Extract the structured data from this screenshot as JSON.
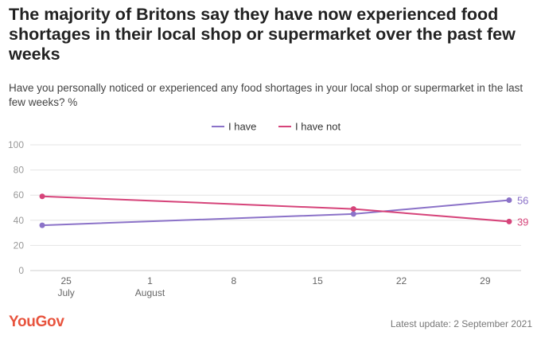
{
  "title": "The majority of Britons say they have now experienced food shortages in their local shop or supermarket over the past few weeks",
  "subtitle": "Have you personally noticed or experienced any food shortages in your local shop or supermarket in the last few weeks? %",
  "chart_data": {
    "type": "line",
    "ylim": [
      0,
      100
    ],
    "yticks": [
      0,
      20,
      40,
      60,
      80,
      100
    ],
    "grid": true,
    "xlim_day": [
      -3,
      38
    ],
    "xticks": [
      {
        "day": 0,
        "label": "25",
        "sublabel": "July"
      },
      {
        "day": 7,
        "label": "1",
        "sublabel": "August"
      },
      {
        "day": 14,
        "label": "8",
        "sublabel": ""
      },
      {
        "day": 21,
        "label": "15",
        "sublabel": ""
      },
      {
        "day": 28,
        "label": "22",
        "sublabel": ""
      },
      {
        "day": 35,
        "label": "29",
        "sublabel": ""
      }
    ],
    "series": [
      {
        "name": "I have",
        "color": "#8b72c8",
        "points": [
          {
            "day": -2,
            "value": 36
          },
          {
            "day": 24,
            "value": 45
          },
          {
            "day": 37,
            "value": 56
          }
        ],
        "end_label": "56"
      },
      {
        "name": "I have not",
        "color": "#d6447a",
        "points": [
          {
            "day": -2,
            "value": 59
          },
          {
            "day": 24,
            "value": 49
          },
          {
            "day": 37,
            "value": 39
          }
        ],
        "end_label": "39"
      }
    ]
  },
  "footer": {
    "brand": "YouGov",
    "update": "Latest update: 2 September 2021"
  }
}
